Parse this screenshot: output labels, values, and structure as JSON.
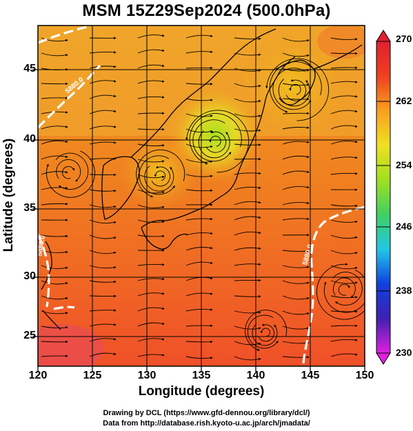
{
  "title": "MSM 15Z29Sep2024 (500.0hPa)",
  "axes": {
    "xlabel": "Longitude (degrees)",
    "ylabel": "Latitude  (degrees)",
    "xticks": [
      "120",
      "125",
      "130",
      "135",
      "140",
      "145",
      "150"
    ],
    "yticks": [
      "45",
      "40",
      "35",
      "30",
      "25"
    ]
  },
  "colorbar": {
    "ticks": [
      "270",
      "262",
      "254",
      "246",
      "238",
      "230"
    ],
    "min": 230,
    "max": 270,
    "palette": [
      "#e020e0",
      "#4020b0",
      "#1040e0",
      "#20c8e8",
      "#40d060",
      "#a0e020",
      "#f0e020",
      "#f8a020",
      "#f04020",
      "#e02030"
    ]
  },
  "contour_labels": [
    "5880.0",
    "5880.0",
    "5880.0"
  ],
  "credits": {
    "line1": "Drawing by DCL (https://www.gfd-dennou.org/library/dcl/)",
    "line2": "Data from http://database.rish.kyoto-u.ac.jp/arch/jmadata/"
  }
}
